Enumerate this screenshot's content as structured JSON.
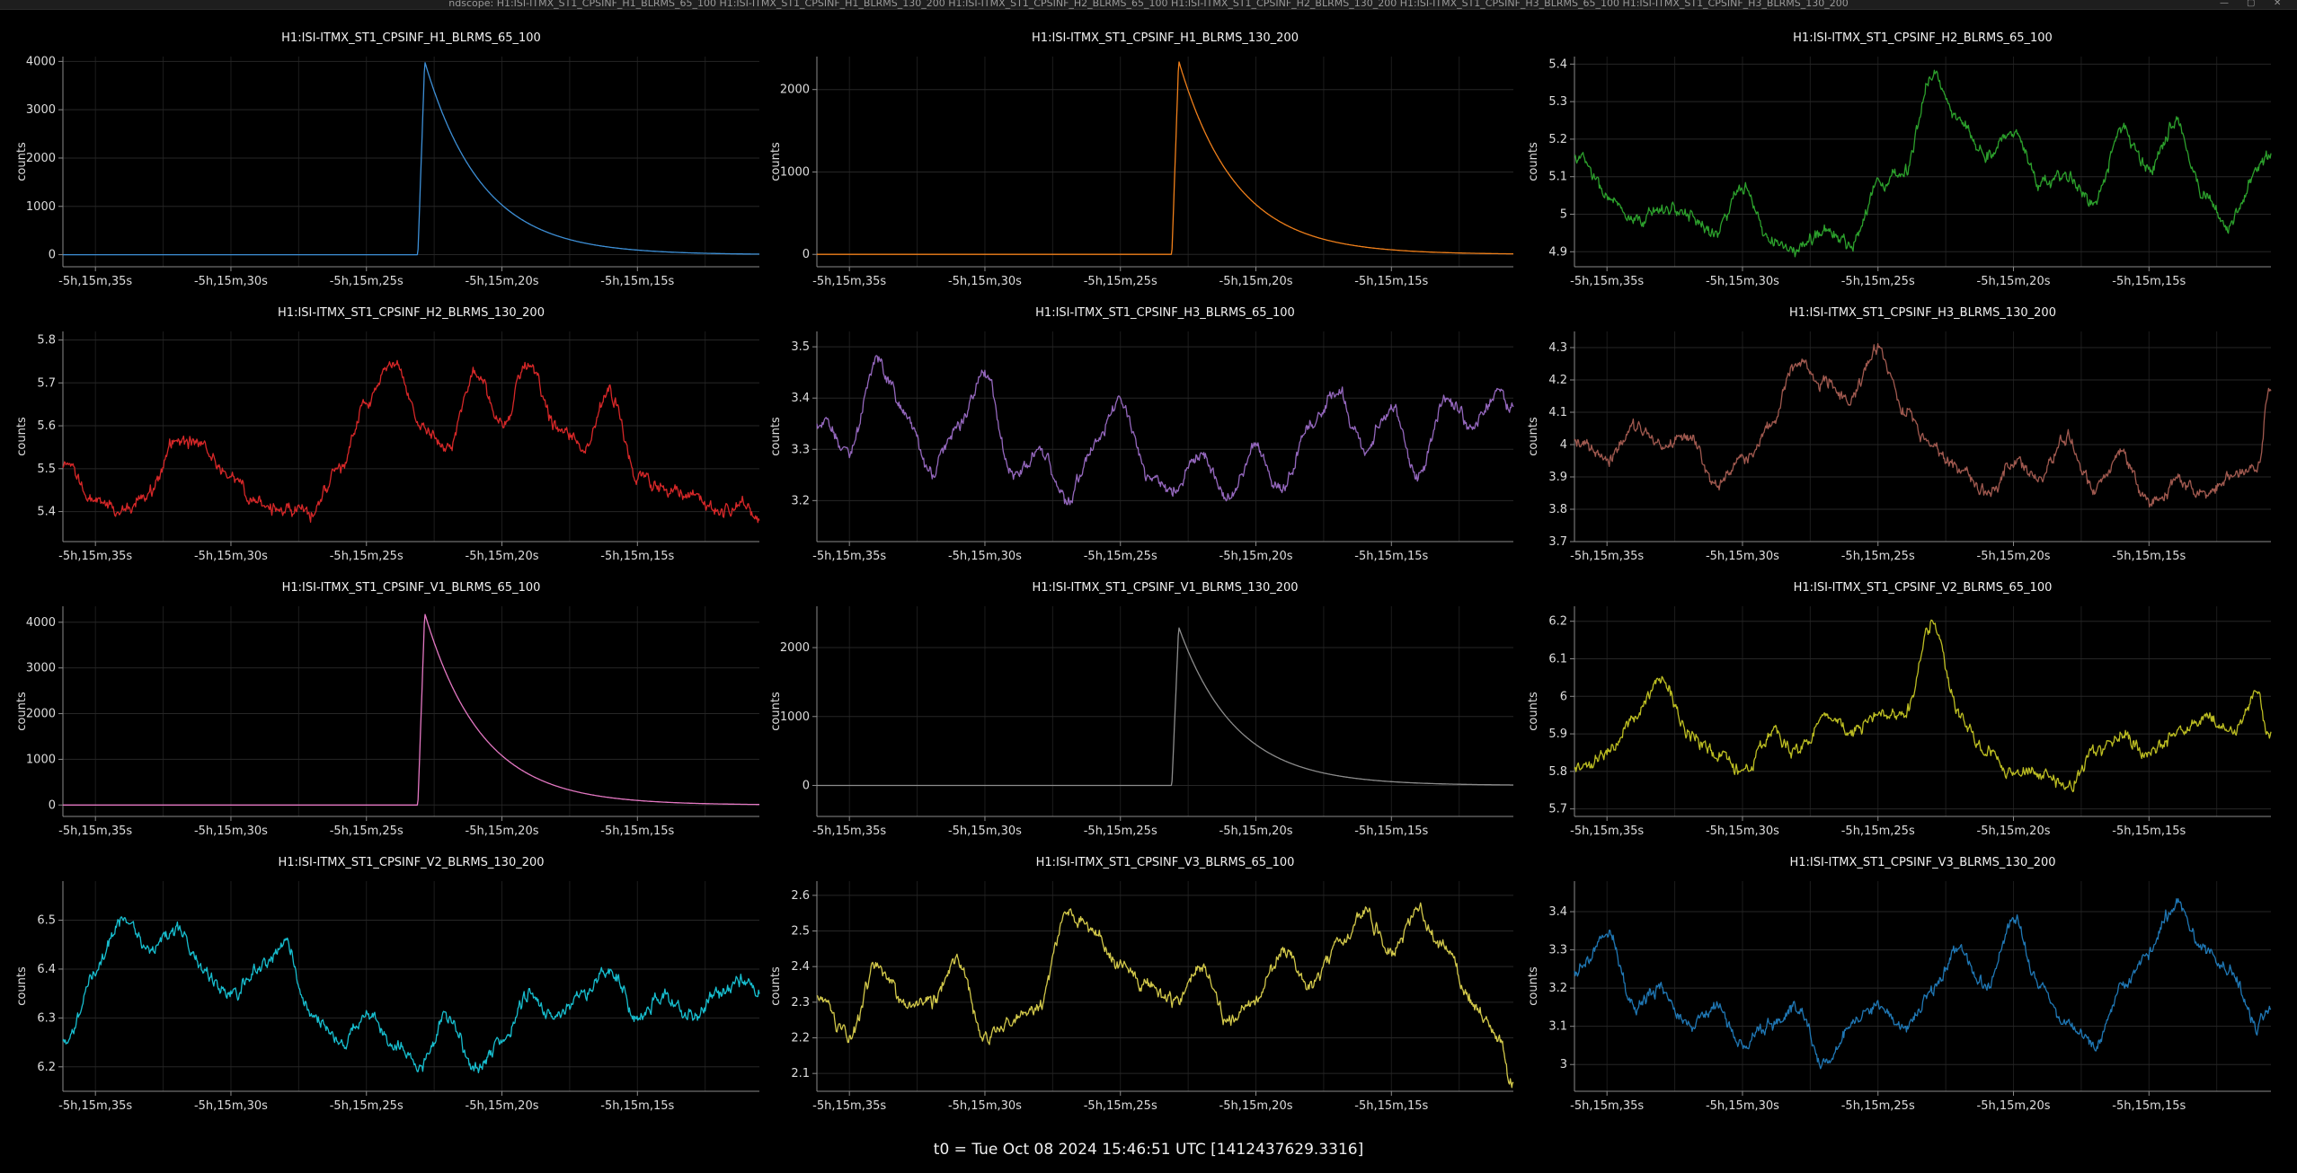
{
  "window": {
    "title": "ndscope: H1:ISI-ITMX_ST1_CPSINF_H1_BLRMS_65_100 H1:ISI-ITMX_ST1_CPSINF_H1_BLRMS_130_200 H1:ISI-ITMX_ST1_CPSINF_H2_BLRMS_65_100 H1:ISI-ITMX_ST1_CPSINF_H2_BLRMS_130_200 H1:ISI-ITMX_ST1_CPSINF_H3_BLRMS_65_100 H1:ISI-ITMX_ST1_CPSINF_H3_BLRMS_130_200"
  },
  "footer": {
    "t0": "t0 = Tue Oct 08 2024 15:46:51 UTC [1412437629.3316]"
  },
  "x_tick_labels": [
    "-5h,15m,35s",
    "-5h,15m,30s",
    "-5h,15m,25s",
    "-5h,15m,20s",
    "-5h,15m,15s"
  ],
  "chart_data": [
    {
      "type": "line",
      "title": "H1:ISI-ITMX_ST1_CPSINF_H1_BLRMS_65_100",
      "ylabel": "counts",
      "color": "#3d8fd6",
      "shape": "spike",
      "x": [
        -36.2,
        -10.5
      ],
      "ylim": [
        -250,
        4100
      ],
      "yticks": [
        0,
        1000,
        2000,
        3000,
        4000
      ],
      "spike_x": -23.1,
      "baseline": 0,
      "peak": 4000,
      "decay_s": 2.1
    },
    {
      "type": "line",
      "title": "H1:ISI-ITMX_ST1_CPSINF_H1_BLRMS_130_200",
      "ylabel": "counts",
      "color": "#ef7f1a",
      "shape": "spike",
      "x": [
        -36.2,
        -10.5
      ],
      "ylim": [
        -150,
        2400
      ],
      "yticks": [
        0,
        1000,
        2000
      ],
      "spike_x": -23.1,
      "baseline": 0,
      "peak": 2350,
      "decay_s": 2.1
    },
    {
      "type": "line",
      "title": "H1:ISI-ITMX_ST1_CPSINF_H2_BLRMS_65_100",
      "ylabel": "counts",
      "color": "#2ca02c",
      "shape": "noise",
      "x": [
        -36.2,
        -10.5
      ],
      "ylim": [
        4.86,
        5.42
      ],
      "yticks": [
        4.9,
        5,
        5.1,
        5.2,
        5.3,
        5.4
      ],
      "points": [
        [
          -36,
          5.15
        ],
        [
          -35,
          5.05
        ],
        [
          -34,
          4.97
        ],
        [
          -33,
          5.02
        ],
        [
          -32,
          5.0
        ],
        [
          -31,
          4.95
        ],
        [
          -30,
          5.07
        ],
        [
          -29,
          4.93
        ],
        [
          -28,
          4.9
        ],
        [
          -27,
          4.96
        ],
        [
          -26,
          4.92
        ],
        [
          -25,
          5.08
        ],
        [
          -24,
          5.12
        ],
        [
          -23,
          5.37
        ],
        [
          -22,
          5.25
        ],
        [
          -21,
          5.16
        ],
        [
          -20,
          5.22
        ],
        [
          -19,
          5.08
        ],
        [
          -18,
          5.1
        ],
        [
          -17,
          5.03
        ],
        [
          -16,
          5.22
        ],
        [
          -15,
          5.12
        ],
        [
          -14,
          5.25
        ],
        [
          -13,
          5.05
        ],
        [
          -12,
          4.97
        ],
        [
          -11,
          5.12
        ],
        [
          -10.6,
          5.15
        ]
      ]
    },
    {
      "type": "line",
      "title": "H1:ISI-ITMX_ST1_CPSINF_H2_BLRMS_130_200",
      "ylabel": "counts",
      "color": "#d62728",
      "shape": "noise",
      "x": [
        -36.2,
        -10.5
      ],
      "ylim": [
        5.33,
        5.82
      ],
      "yticks": [
        5.4,
        5.5,
        5.6,
        5.7,
        5.8
      ],
      "points": [
        [
          -36,
          5.5
        ],
        [
          -35,
          5.42
        ],
        [
          -34,
          5.4
        ],
        [
          -33,
          5.45
        ],
        [
          -32,
          5.57
        ],
        [
          -31,
          5.55
        ],
        [
          -30,
          5.48
        ],
        [
          -29,
          5.42
        ],
        [
          -28,
          5.4
        ],
        [
          -27,
          5.4
        ],
        [
          -26,
          5.5
        ],
        [
          -25,
          5.65
        ],
        [
          -24,
          5.75
        ],
        [
          -23,
          5.6
        ],
        [
          -22,
          5.55
        ],
        [
          -21,
          5.72
        ],
        [
          -20,
          5.6
        ],
        [
          -19,
          5.75
        ],
        [
          -18,
          5.6
        ],
        [
          -17,
          5.55
        ],
        [
          -16,
          5.68
        ],
        [
          -15,
          5.48
        ],
        [
          -14,
          5.45
        ],
        [
          -13,
          5.45
        ],
        [
          -12,
          5.4
        ],
        [
          -11,
          5.42
        ],
        [
          -10.6,
          5.38
        ]
      ]
    },
    {
      "type": "line",
      "title": "H1:ISI-ITMX_ST1_CPSINF_H3_BLRMS_65_100",
      "ylabel": "counts",
      "color": "#9467bd",
      "shape": "noise",
      "x": [
        -36.2,
        -10.5
      ],
      "ylim": [
        3.12,
        3.53
      ],
      "yticks": [
        3.2,
        3.3,
        3.4,
        3.5
      ],
      "points": [
        [
          -36,
          3.35
        ],
        [
          -35,
          3.3
        ],
        [
          -34,
          3.47
        ],
        [
          -33,
          3.38
        ],
        [
          -32,
          3.25
        ],
        [
          -31,
          3.35
        ],
        [
          -30,
          3.45
        ],
        [
          -29,
          3.25
        ],
        [
          -28,
          3.3
        ],
        [
          -27,
          3.2
        ],
        [
          -26,
          3.3
        ],
        [
          -25,
          3.4
        ],
        [
          -24,
          3.25
        ],
        [
          -23,
          3.22
        ],
        [
          -22,
          3.3
        ],
        [
          -21,
          3.2
        ],
        [
          -20,
          3.3
        ],
        [
          -19,
          3.22
        ],
        [
          -18,
          3.35
        ],
        [
          -17,
          3.42
        ],
        [
          -16,
          3.3
        ],
        [
          -15,
          3.38
        ],
        [
          -14,
          3.25
        ],
        [
          -13,
          3.4
        ],
        [
          -12,
          3.35
        ],
        [
          -11,
          3.42
        ],
        [
          -10.6,
          3.38
        ]
      ]
    },
    {
      "type": "line",
      "title": "H1:ISI-ITMX_ST1_CPSINF_H3_BLRMS_130_200",
      "ylabel": "counts",
      "color": "#a0594f",
      "shape": "noise",
      "x": [
        -36.2,
        -10.5
      ],
      "ylim": [
        3.7,
        4.35
      ],
      "yticks": [
        3.7,
        3.8,
        3.9,
        4,
        4.1,
        4.2,
        4.3
      ],
      "points": [
        [
          -36,
          4.0
        ],
        [
          -35,
          3.95
        ],
        [
          -34,
          4.05
        ],
        [
          -33,
          4.0
        ],
        [
          -32,
          4.02
        ],
        [
          -31,
          3.88
        ],
        [
          -30,
          3.95
        ],
        [
          -29,
          4.05
        ],
        [
          -28,
          4.25
        ],
        [
          -27,
          4.2
        ],
        [
          -26,
          4.15
        ],
        [
          -25,
          4.3
        ],
        [
          -24,
          4.1
        ],
        [
          -23,
          4.0
        ],
        [
          -22,
          3.92
        ],
        [
          -21,
          3.85
        ],
        [
          -20,
          3.95
        ],
        [
          -19,
          3.9
        ],
        [
          -18,
          4.02
        ],
        [
          -17,
          3.85
        ],
        [
          -16,
          3.98
        ],
        [
          -15,
          3.82
        ],
        [
          -14,
          3.88
        ],
        [
          -13,
          3.85
        ],
        [
          -12,
          3.9
        ],
        [
          -11,
          3.92
        ],
        [
          -10.6,
          4.15
        ]
      ]
    },
    {
      "type": "line",
      "title": "H1:ISI-ITMX_ST1_CPSINF_V1_BLRMS_65_100",
      "ylabel": "counts",
      "color": "#e377c2",
      "shape": "spike",
      "x": [
        -36.2,
        -10.5
      ],
      "ylim": [
        -250,
        4350
      ],
      "yticks": [
        0,
        1000,
        2000,
        3000,
        4000
      ],
      "spike_x": -23.1,
      "baseline": 0,
      "peak": 4200,
      "decay_s": 2.1
    },
    {
      "type": "line",
      "title": "H1:ISI-ITMX_ST1_CPSINF_V1_BLRMS_130_200",
      "ylabel": "counts",
      "color": "#8c8c8c",
      "shape": "spike",
      "x": [
        -36.2,
        -10.5
      ],
      "ylim": [
        -450,
        2600
      ],
      "yticks": [
        0,
        1000,
        2000
      ],
      "spike_x": -23.1,
      "baseline": 0,
      "peak": 2300,
      "decay_s": 2.1
    },
    {
      "type": "line",
      "title": "H1:ISI-ITMX_ST1_CPSINF_V2_BLRMS_65_100",
      "ylabel": "counts",
      "color": "#bcbd22",
      "shape": "noise",
      "x": [
        -36.2,
        -10.5
      ],
      "ylim": [
        5.68,
        6.24
      ],
      "yticks": [
        5.7,
        5.8,
        5.9,
        6,
        6.1,
        6.2
      ],
      "points": [
        [
          -36,
          5.8
        ],
        [
          -35,
          5.85
        ],
        [
          -34,
          5.95
        ],
        [
          -33,
          6.05
        ],
        [
          -32,
          5.9
        ],
        [
          -31,
          5.85
        ],
        [
          -30,
          5.8
        ],
        [
          -29,
          5.9
        ],
        [
          -28,
          5.85
        ],
        [
          -27,
          5.95
        ],
        [
          -26,
          5.9
        ],
        [
          -25,
          5.95
        ],
        [
          -24,
          5.95
        ],
        [
          -23,
          6.2
        ],
        [
          -22,
          5.95
        ],
        [
          -21,
          5.85
        ],
        [
          -20,
          5.8
        ],
        [
          -19,
          5.8
        ],
        [
          -18,
          5.75
        ],
        [
          -17,
          5.85
        ],
        [
          -16,
          5.9
        ],
        [
          -15,
          5.85
        ],
        [
          -14,
          5.9
        ],
        [
          -13,
          5.95
        ],
        [
          -12,
          5.9
        ],
        [
          -11,
          6.0
        ],
        [
          -10.6,
          5.9
        ]
      ]
    },
    {
      "type": "line",
      "title": "H1:ISI-ITMX_ST1_CPSINF_V2_BLRMS_130_200",
      "ylabel": "counts",
      "color": "#17becf",
      "shape": "noise",
      "x": [
        -36.2,
        -10.5
      ],
      "ylim": [
        6.15,
        6.58
      ],
      "yticks": [
        6.2,
        6.3,
        6.4,
        6.5
      ],
      "points": [
        [
          -36,
          6.25
        ],
        [
          -35,
          6.4
        ],
        [
          -34,
          6.5
        ],
        [
          -33,
          6.45
        ],
        [
          -32,
          6.48
        ],
        [
          -31,
          6.4
        ],
        [
          -30,
          6.35
        ],
        [
          -29,
          6.4
        ],
        [
          -28,
          6.45
        ],
        [
          -27,
          6.3
        ],
        [
          -26,
          6.25
        ],
        [
          -25,
          6.3
        ],
        [
          -24,
          6.25
        ],
        [
          -23,
          6.2
        ],
        [
          -22,
          6.3
        ],
        [
          -21,
          6.2
        ],
        [
          -20,
          6.25
        ],
        [
          -19,
          6.35
        ],
        [
          -18,
          6.3
        ],
        [
          -17,
          6.35
        ],
        [
          -16,
          6.4
        ],
        [
          -15,
          6.3
        ],
        [
          -14,
          6.35
        ],
        [
          -13,
          6.3
        ],
        [
          -12,
          6.35
        ],
        [
          -11,
          6.38
        ],
        [
          -10.6,
          6.35
        ]
      ]
    },
    {
      "type": "line",
      "title": "H1:ISI-ITMX_ST1_CPSINF_V3_BLRMS_65_100",
      "ylabel": "counts",
      "color": "#d2c84a",
      "shape": "noise",
      "x": [
        -36.2,
        -10.5
      ],
      "ylim": [
        2.05,
        2.64
      ],
      "yticks": [
        2.1,
        2.2,
        2.3,
        2.4,
        2.5,
        2.6
      ],
      "points": [
        [
          -36,
          2.3
        ],
        [
          -35,
          2.2
        ],
        [
          -34,
          2.4
        ],
        [
          -33,
          2.3
        ],
        [
          -32,
          2.3
        ],
        [
          -31,
          2.42
        ],
        [
          -30,
          2.2
        ],
        [
          -29,
          2.25
        ],
        [
          -28,
          2.28
        ],
        [
          -27,
          2.55
        ],
        [
          -26,
          2.5
        ],
        [
          -25,
          2.4
        ],
        [
          -24,
          2.35
        ],
        [
          -23,
          2.3
        ],
        [
          -22,
          2.4
        ],
        [
          -21,
          2.25
        ],
        [
          -20,
          2.3
        ],
        [
          -19,
          2.45
        ],
        [
          -18,
          2.35
        ],
        [
          -17,
          2.45
        ],
        [
          -16,
          2.55
        ],
        [
          -15,
          2.45
        ],
        [
          -14,
          2.55
        ],
        [
          -13,
          2.45
        ],
        [
          -12,
          2.3
        ],
        [
          -11,
          2.2
        ],
        [
          -10.6,
          2.08
        ]
      ]
    },
    {
      "type": "line",
      "title": "H1:ISI-ITMX_ST1_CPSINF_V3_BLRMS_130_200",
      "ylabel": "counts",
      "color": "#1f77b4",
      "shape": "noise",
      "x": [
        -36.2,
        -10.5
      ],
      "ylim": [
        2.93,
        3.48
      ],
      "yticks": [
        3,
        3.1,
        3.2,
        3.3,
        3.4
      ],
      "points": [
        [
          -36,
          3.25
        ],
        [
          -35,
          3.35
        ],
        [
          -34,
          3.15
        ],
        [
          -33,
          3.2
        ],
        [
          -32,
          3.1
        ],
        [
          -31,
          3.15
        ],
        [
          -30,
          3.05
        ],
        [
          -29,
          3.1
        ],
        [
          -28,
          3.15
        ],
        [
          -27,
          3.0
        ],
        [
          -26,
          3.1
        ],
        [
          -25,
          3.15
        ],
        [
          -24,
          3.1
        ],
        [
          -23,
          3.2
        ],
        [
          -22,
          3.3
        ],
        [
          -21,
          3.2
        ],
        [
          -20,
          3.38
        ],
        [
          -19,
          3.2
        ],
        [
          -18,
          3.1
        ],
        [
          -17,
          3.05
        ],
        [
          -16,
          3.2
        ],
        [
          -15,
          3.3
        ],
        [
          -14,
          3.42
        ],
        [
          -13,
          3.3
        ],
        [
          -12,
          3.25
        ],
        [
          -11,
          3.1
        ],
        [
          -10.6,
          3.15
        ]
      ]
    }
  ]
}
